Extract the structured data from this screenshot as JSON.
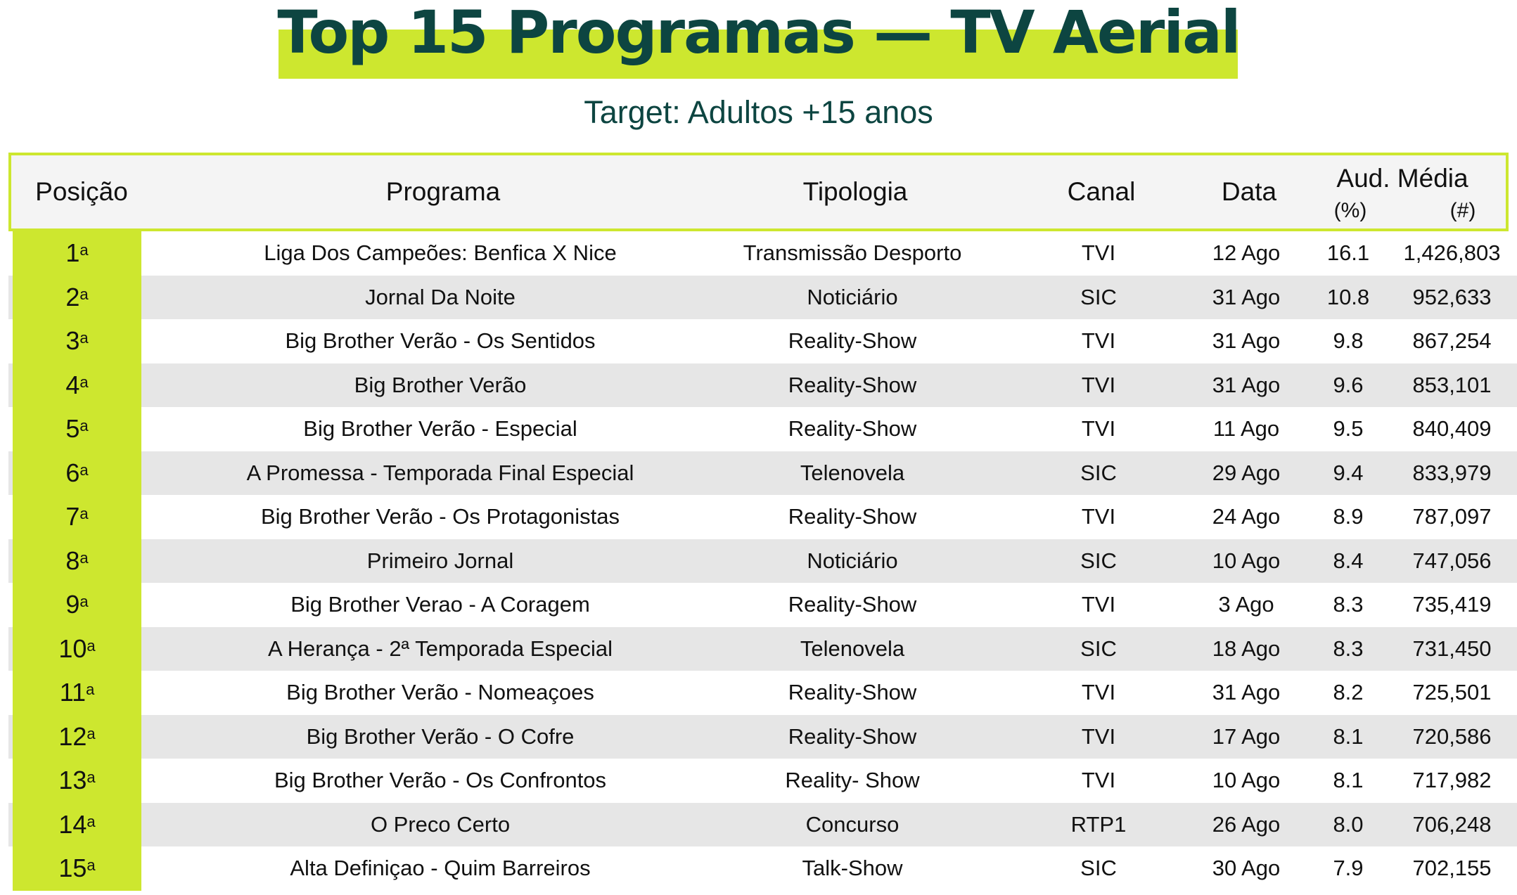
{
  "title": "Top 15 Programas — TV Aerial",
  "subtitle": "Target: Adultos +15 anos",
  "colors": {
    "accent": "#cde72f",
    "title": "#0d4541",
    "row_alt": "#e6e6e6"
  },
  "table": {
    "headers": {
      "posicao": "Posição",
      "programa": "Programa",
      "tipologia": "Tipologia",
      "canal": "Canal",
      "data": "Data",
      "aud": "Aud. Média",
      "pct": "(%)",
      "num": "(#)"
    },
    "rows": [
      {
        "pos": "1",
        "sup": "a",
        "programa": "Liga Dos Campeões: Benfica X Nice",
        "tipologia": "Transmissão Desporto",
        "canal": "TVI",
        "data": "12 Ago",
        "pct": "16.1",
        "num": "1,426,803"
      },
      {
        "pos": "2",
        "sup": "a",
        "programa": "Jornal Da Noite",
        "tipologia": "Noticiário",
        "canal": "SIC",
        "data": "31 Ago",
        "pct": "10.8",
        "num": "952,633"
      },
      {
        "pos": "3",
        "sup": "a",
        "programa": "Big Brother Verão - Os Sentidos",
        "tipologia": "Reality-Show",
        "canal": "TVI",
        "data": "31 Ago",
        "pct": "9.8",
        "num": "867,254"
      },
      {
        "pos": "4",
        "sup": "a",
        "programa": "Big Brother Verão",
        "tipologia": "Reality-Show",
        "canal": "TVI",
        "data": "31 Ago",
        "pct": "9.6",
        "num": "853,101"
      },
      {
        "pos": "5",
        "sup": "a",
        "programa": "Big Brother Verão - Especial",
        "tipologia": "Reality-Show",
        "canal": "TVI",
        "data": "11 Ago",
        "pct": "9.5",
        "num": "840,409"
      },
      {
        "pos": "6",
        "sup": "a",
        "programa": "A Promessa - Temporada Final Especial",
        "tipologia": "Telenovela",
        "canal": "SIC",
        "data": "29 Ago",
        "pct": "9.4",
        "num": "833,979"
      },
      {
        "pos": "7",
        "sup": "a",
        "programa": "Big Brother Verão - Os Protagonistas",
        "tipologia": "Reality-Show",
        "canal": "TVI",
        "data": "24 Ago",
        "pct": "8.9",
        "num": "787,097"
      },
      {
        "pos": "8",
        "sup": "a",
        "programa": "Primeiro Jornal",
        "tipologia": "Noticiário",
        "canal": "SIC",
        "data": "10 Ago",
        "pct": "8.4",
        "num": "747,056"
      },
      {
        "pos": "9",
        "sup": "a",
        "programa": "Big Brother Verao - A Coragem",
        "tipologia": "Reality-Show",
        "canal": "TVI",
        "data": "3 Ago",
        "pct": "8.3",
        "num": "735,419"
      },
      {
        "pos": "10",
        "sup": "a",
        "programa": "A Herança - 2ª Temporada Especial",
        "tipologia": "Telenovela",
        "canal": "SIC",
        "data": "18 Ago",
        "pct": "8.3",
        "num": "731,450"
      },
      {
        "pos": "11",
        "sup": "a",
        "programa": "Big Brother Verão - Nomeaçoes",
        "tipologia": "Reality-Show",
        "canal": "TVI",
        "data": "31 Ago",
        "pct": "8.2",
        "num": "725,501"
      },
      {
        "pos": "12",
        "sup": "a",
        "programa": "Big Brother Verão - O Cofre",
        "tipologia": "Reality-Show",
        "canal": "TVI",
        "data": "17 Ago",
        "pct": "8.1",
        "num": "720,586"
      },
      {
        "pos": "13",
        "sup": "a",
        "programa": "Big Brother Verão - Os Confrontos",
        "tipologia": "Reality- Show",
        "canal": "TVI",
        "data": "10 Ago",
        "pct": "8.1",
        "num": "717,982"
      },
      {
        "pos": "14",
        "sup": "a",
        "programa": "O Preco Certo",
        "tipologia": "Concurso",
        "canal": "RTP1",
        "data": "26 Ago",
        "pct": "8.0",
        "num": "706,248"
      },
      {
        "pos": "15",
        "sup": "a",
        "programa": "Alta Definiçao - Quim Barreiros",
        "tipologia": "Talk-Show",
        "canal": "SIC",
        "data": "30 Ago",
        "pct": "7.9",
        "num": "702,155"
      }
    ]
  }
}
